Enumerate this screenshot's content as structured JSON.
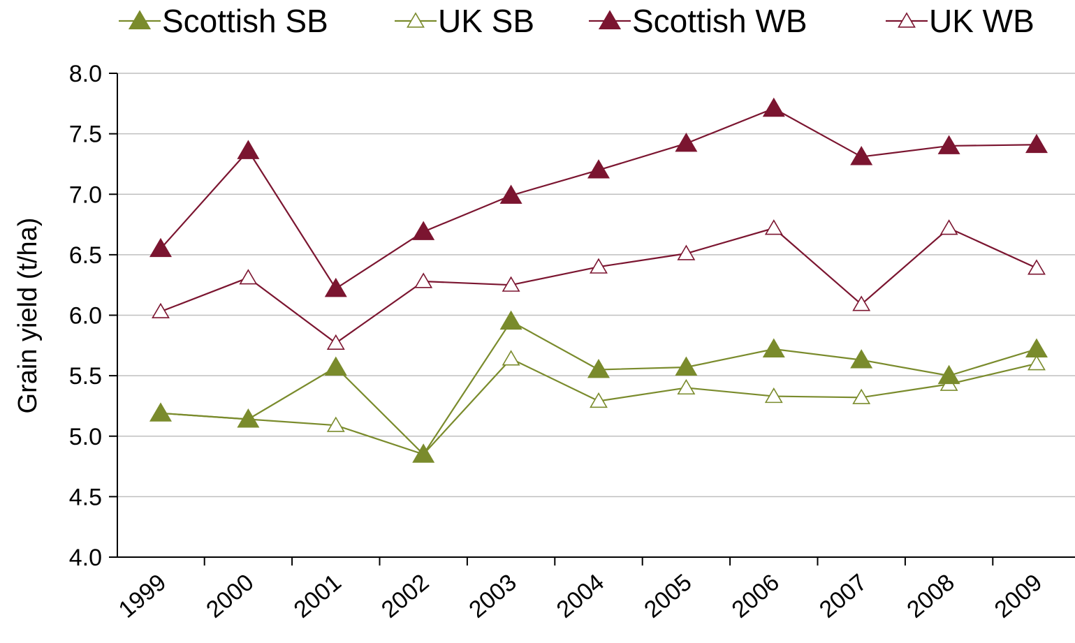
{
  "chart_data": {
    "type": "line",
    "title": "",
    "xlabel": "",
    "ylabel": "Grain yield (t/ha)",
    "ylim": [
      4.0,
      8.0
    ],
    "ytick_step": 0.5,
    "ytick_labels": [
      "4.0",
      "4.5",
      "5.0",
      "5.5",
      "6.0",
      "6.5",
      "7.0",
      "7.5",
      "8.0"
    ],
    "categories": [
      "1999",
      "2000",
      "2001",
      "2002",
      "2003",
      "2004",
      "2005",
      "2006",
      "2007",
      "2008",
      "2009"
    ],
    "grid": "horizontal",
    "legend_position": "top",
    "series": [
      {
        "name": "Scottish SB",
        "color": "#7a8b2c",
        "marker": "filled-triangle",
        "values": [
          5.19,
          5.14,
          5.57,
          4.85,
          5.95,
          5.55,
          5.57,
          5.72,
          5.63,
          5.5,
          5.72
        ]
      },
      {
        "name": "UK SB",
        "color": "#7a8b2c",
        "marker": "open-triangle",
        "values": [
          5.19,
          5.14,
          5.09,
          4.85,
          5.64,
          5.29,
          5.4,
          5.33,
          5.32,
          5.43,
          5.6
        ]
      },
      {
        "name": "Scottish WB",
        "color": "#7b1530",
        "marker": "filled-triangle",
        "values": [
          6.55,
          7.36,
          6.22,
          6.69,
          6.99,
          7.2,
          7.42,
          7.71,
          7.31,
          7.4,
          7.41
        ]
      },
      {
        "name": "UK WB",
        "color": "#7b1530",
        "marker": "open-triangle",
        "values": [
          6.03,
          6.31,
          5.77,
          6.28,
          6.25,
          6.4,
          6.51,
          6.72,
          6.09,
          6.72,
          6.39
        ]
      }
    ]
  }
}
